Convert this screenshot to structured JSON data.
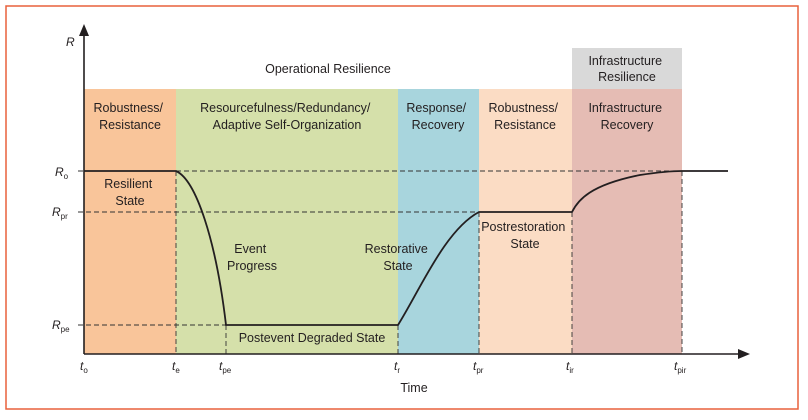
{
  "colors": {
    "frame": "#e8603c",
    "operational_band": "#ffffff",
    "infrastructure_band": "#d9d9d9",
    "robustness_1": "#f9c59a",
    "resourcefulness": "#d5e0aa",
    "response": "#a8d5dd",
    "robustness_2": "#fbdcc4",
    "infra_recovery": "#e5bcb4",
    "curve": "#231f20"
  },
  "axis": {
    "y_label": "R",
    "x_title": "Time",
    "y_ticks": [
      {
        "main": "R",
        "sub": "o"
      },
      {
        "main": "R",
        "sub": "pr"
      },
      {
        "main": "R",
        "sub": "pe"
      }
    ],
    "x_ticks": [
      {
        "main": "t",
        "sub": "o"
      },
      {
        "main": "t",
        "sub": "e"
      },
      {
        "main": "t",
        "sub": "pe"
      },
      {
        "main": "t",
        "sub": "r"
      },
      {
        "main": "t",
        "sub": "pr"
      },
      {
        "main": "t",
        "sub": "ir"
      },
      {
        "main": "t",
        "sub": "pir"
      }
    ]
  },
  "bands": {
    "operational": "Operational Resilience",
    "infrastructure": [
      "Infrastructure",
      "Resilience"
    ]
  },
  "phases": [
    [
      "Robustness/",
      "Resistance"
    ],
    [
      "Resourcefulness/Redundancy/",
      "Adaptive Self-Organization"
    ],
    [
      "Response/",
      "Recovery"
    ],
    [
      "Robustness/",
      "Resistance"
    ],
    [
      "Infrastructure",
      "Recovery"
    ]
  ],
  "states": {
    "resilient": [
      "Resilient",
      "State"
    ],
    "event": [
      "Event",
      "Progress"
    ],
    "degraded": "Postevent Degraded State",
    "restorative": [
      "Restorative",
      "State"
    ],
    "postrestoration": [
      "Postrestoration",
      "State"
    ]
  }
}
